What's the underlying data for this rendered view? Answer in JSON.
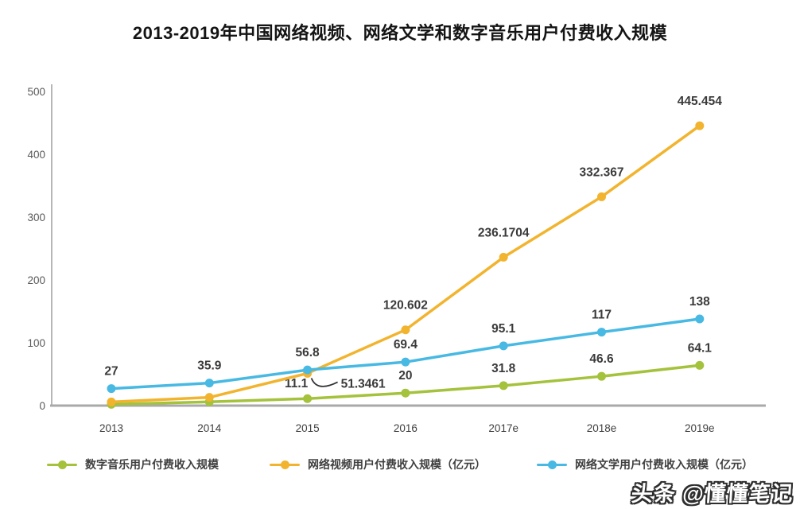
{
  "title": "2013-2019年中国网络视频、网络文学和数字音乐用户付费收入规模",
  "watermark": "头条 @懂懂笔记",
  "colors": {
    "music": "#a4c23c",
    "video": "#f2b42e",
    "literature": "#47b9e3",
    "axis": "#a9a9a9",
    "tick_text": "#595959",
    "data_label_text": "#3a3a3a"
  },
  "chart_data": {
    "type": "line",
    "title": "2013-2019年中国网络视频、网络文学和数字音乐用户付费收入规模",
    "categories": [
      "2013",
      "2014",
      "2015",
      "2016",
      "2017e",
      "2018e",
      "2019e"
    ],
    "xlabel": "",
    "ylabel": "",
    "ylim": [
      0,
      500
    ],
    "yticks": [
      0,
      100,
      200,
      300,
      400,
      500
    ],
    "grid": false,
    "legend_position": "bottom",
    "series": [
      {
        "id": "music",
        "name": "数字音乐用户付费收入规模",
        "color": "#a4c23c",
        "values": [
          2,
          6,
          11.1,
          20,
          31.8,
          46.6,
          64.1
        ],
        "labels": [
          null,
          null,
          "11.1",
          "20",
          "31.8",
          "46.6",
          "64.1"
        ],
        "label_offsets": {
          "2": [
            -14,
            3
          ]
        }
      },
      {
        "id": "video",
        "name": "网络视频用户付费收入规模（亿元）",
        "color": "#f2b42e",
        "values": [
          5.9,
          13.1,
          51.3461,
          120.602,
          236.1704,
          332.367,
          445.454
        ],
        "labels": [
          null,
          null,
          "51.3461",
          "120.602",
          "236.1704",
          "332.367",
          "445.454"
        ],
        "label_dy": -26,
        "callout_index": 2
      },
      {
        "id": "literature",
        "name": "网络文学用户付费收入规模（亿元）",
        "color": "#47b9e3",
        "values": [
          27,
          35.9,
          56.8,
          69.4,
          95.1,
          117,
          138
        ],
        "labels": [
          "27",
          "35.9",
          "56.8",
          "69.4",
          "95.1",
          "117",
          "138"
        ]
      }
    ]
  }
}
